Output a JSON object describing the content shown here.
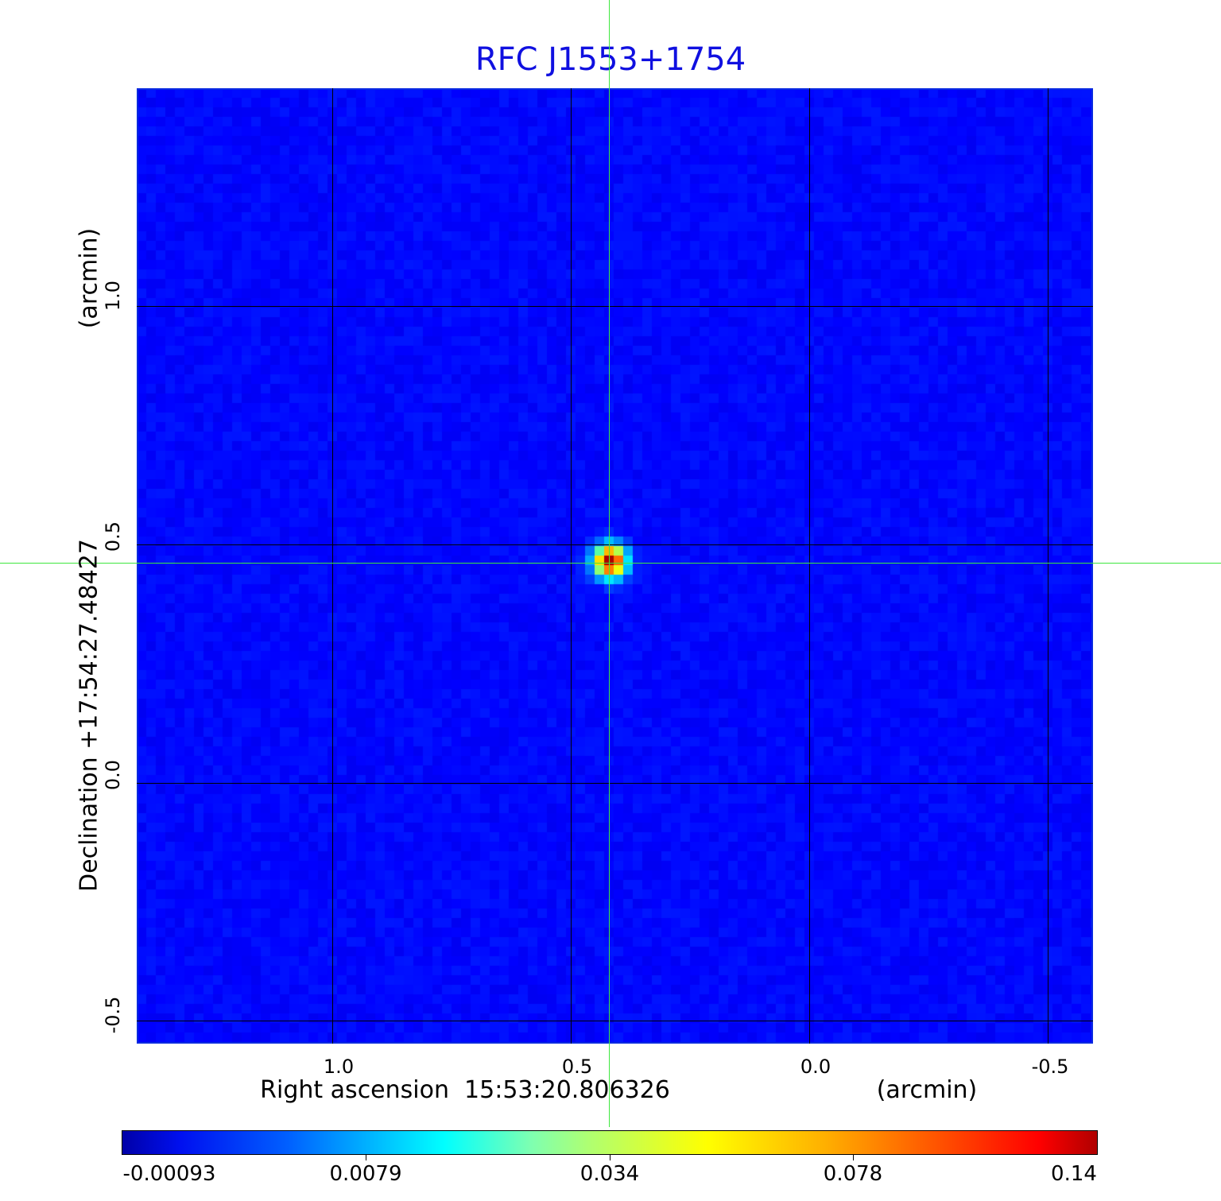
{
  "chart_data": {
    "type": "heatmap",
    "title": "RFC J1553+1754",
    "xlabel": "Right ascension  15:53:20.806326",
    "xunit": "(arcmin)",
    "ylabel": "Declination  +17:54:27.48427",
    "yunit": "(arcmin)",
    "x_ticks": [
      "1.0",
      "0.5",
      "0.0",
      "-0.5"
    ],
    "y_ticks": [
      "1.0",
      "0.5",
      "0.0",
      "-0.5"
    ],
    "xlim": [
      1.41,
      -0.59
    ],
    "ylim": [
      -0.55,
      1.45
    ],
    "grid": true,
    "colormap": "jet",
    "colorbar": {
      "ticks": [
        "-0.00093",
        "0.0079",
        "0.034",
        "0.078",
        "0.14"
      ],
      "range": [
        -0.00093,
        0.14
      ],
      "placement": "bottom"
    },
    "source_peak": {
      "x": 0.42,
      "y": 0.46,
      "value": 0.14
    },
    "crosshair_color": "#3ee83e",
    "background_color": "#1e3cf5"
  }
}
